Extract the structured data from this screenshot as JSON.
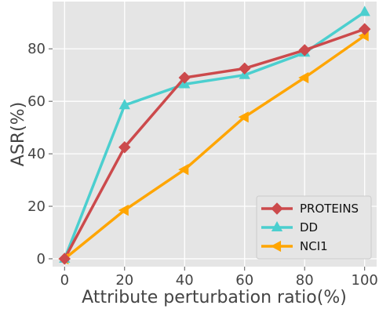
{
  "chart_data": {
    "type": "line",
    "title": "",
    "xlabel": "Attribute perturbation ratio(%)",
    "ylabel": "ASR(%)",
    "x": [
      0,
      20,
      40,
      60,
      80,
      100
    ],
    "x_tick_labels": [
      "0",
      "20",
      "40",
      "60",
      "80",
      "100"
    ],
    "y_tick_values": [
      0,
      20,
      40,
      60,
      80
    ],
    "y_tick_labels": [
      "0",
      "20",
      "40",
      "60",
      "80"
    ],
    "xlim": [
      -4,
      104
    ],
    "ylim": [
      -3,
      98
    ],
    "grid": true,
    "legend_position": "lower-right",
    "series": [
      {
        "name": "PROTEINS",
        "color": "#cc4a4c",
        "marker": "diamond",
        "values": [
          0,
          42.5,
          69,
          72.5,
          79.5,
          87.5
        ]
      },
      {
        "name": "DD",
        "color": "#4bcfcf",
        "marker": "triangle-up",
        "values": [
          0,
          58.5,
          66.5,
          70,
          78.5,
          94
        ]
      },
      {
        "name": "NCI1",
        "color": "#ffa500",
        "marker": "triangle-left",
        "values": [
          0,
          18.5,
          34,
          54,
          69,
          85
        ]
      }
    ]
  }
}
